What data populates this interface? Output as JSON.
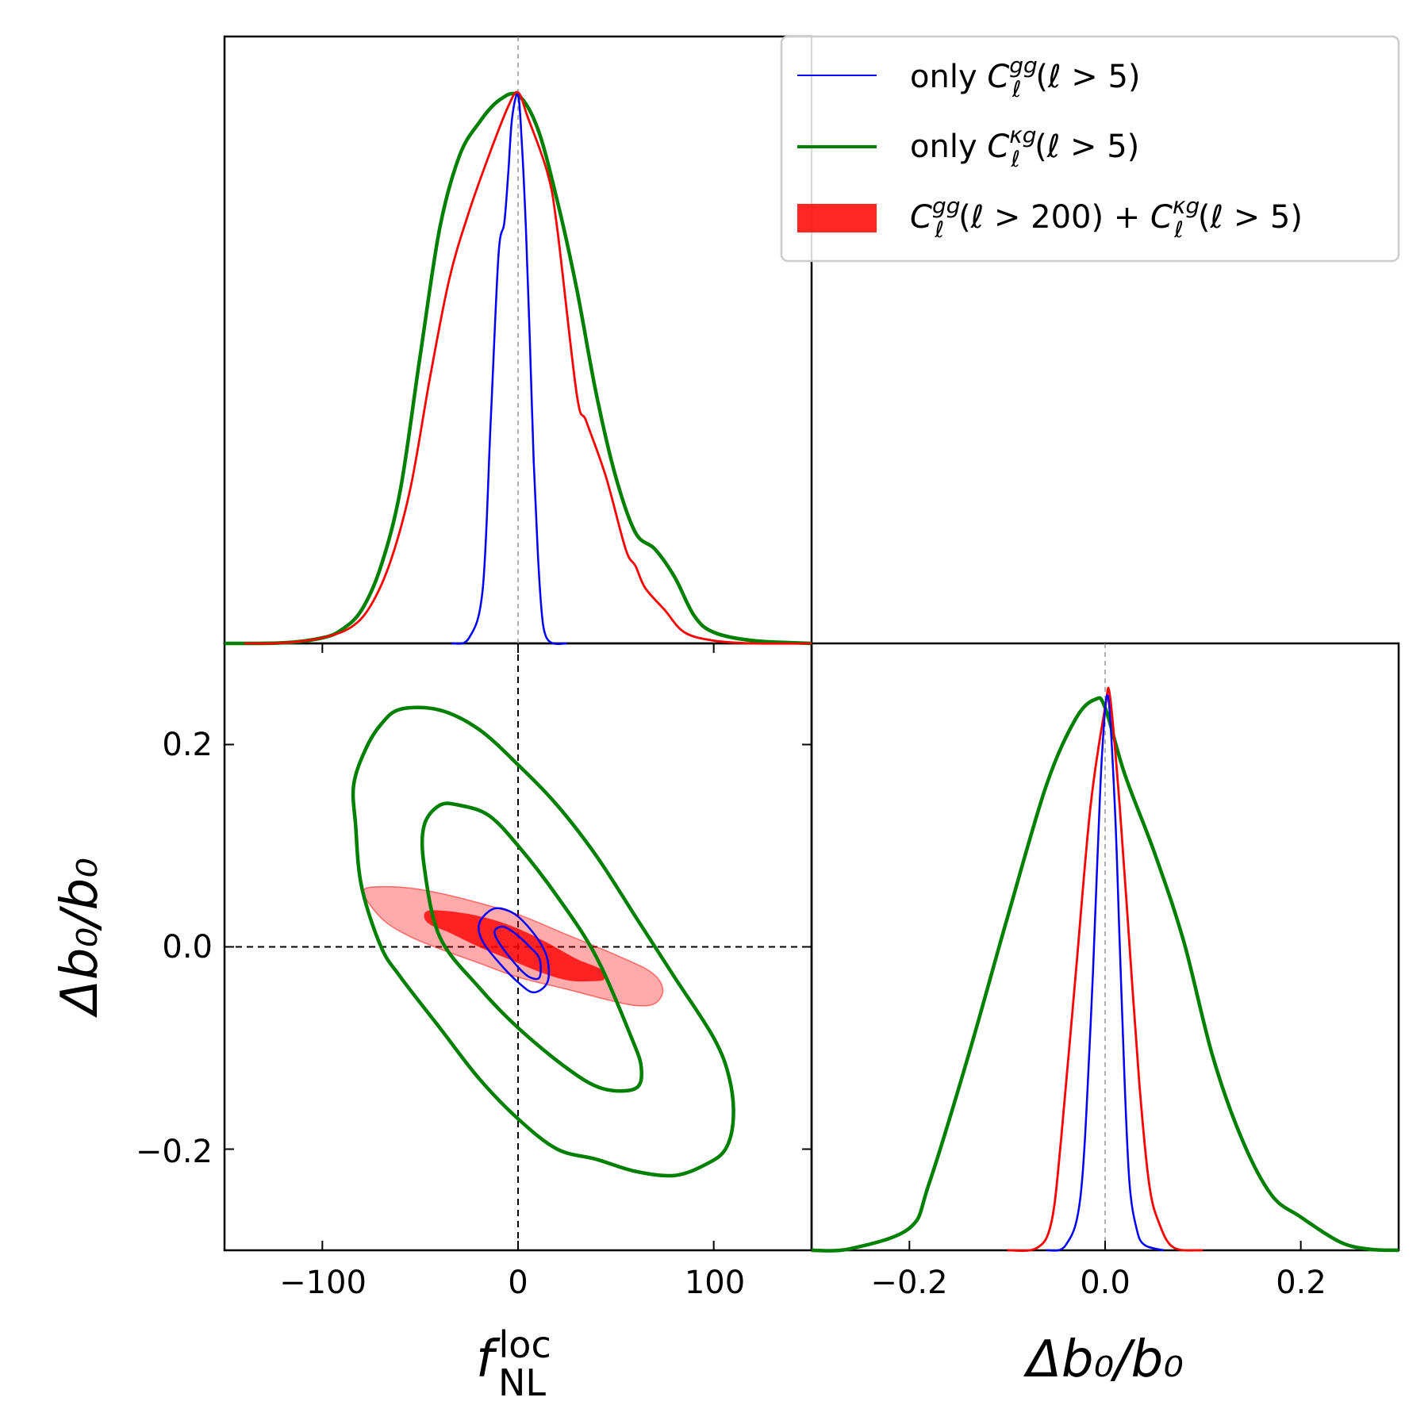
{
  "chart_data": {
    "type": "corner-plot",
    "parameters": [
      "f_NL^loc",
      "Δb0/b0"
    ],
    "fiducial": {
      "fnl": 0,
      "db": 0.0
    },
    "xlim_fnl": [
      -150,
      150
    ],
    "xlim_db": [
      -0.3,
      0.3
    ],
    "ylim_db": [
      -0.3,
      0.3
    ],
    "fnl_ticks": [
      -100,
      0,
      100
    ],
    "db_ticks": [
      -0.2,
      0.0,
      0.2
    ],
    "tick_labels": {
      "fnl": [
        "−100",
        "0",
        "100"
      ],
      "db_x": [
        "−0.2",
        "0.0",
        "0.2"
      ],
      "db_y": [
        "−0.2",
        "0.0",
        "0.2"
      ]
    },
    "axis_labels": {
      "x_left": {
        "main": "f",
        "sub": "NL",
        "sup": "loc"
      },
      "x_right": "Δb₀/b₀",
      "y_left": "Δb₀/b₀"
    },
    "legend": {
      "placement": "top-right",
      "entries": [
        {
          "series": "gg",
          "prefix": "only ",
          "C": "C",
          "sup": "gg",
          "sub": "ℓ",
          "tail": "(ℓ > 5)"
        },
        {
          "series": "kg",
          "prefix": "only ",
          "C": "C",
          "sup": "κg",
          "sub": "ℓ",
          "tail": "(ℓ > 5)"
        },
        {
          "series": "comb",
          "prefix": "",
          "C": "C",
          "sup": "gg",
          "sub": "ℓ",
          "tail": "(ℓ > 200) + ",
          "C2": "C",
          "sup2": "κg",
          "sub2": "ℓ",
          "tail2": "(ℓ > 5)"
        }
      ]
    },
    "series": [
      {
        "name": "gg",
        "color": "#0000ff",
        "fnl_1d": [
          [
            -34,
            0
          ],
          [
            -25,
            0.01
          ],
          [
            -18,
            0.1
          ],
          [
            -14,
            0.4
          ],
          [
            -10,
            0.7
          ],
          [
            -7,
            0.76
          ],
          [
            -5,
            0.85
          ],
          [
            -3,
            0.95
          ],
          [
            0,
            0.99
          ],
          [
            2,
            0.9
          ],
          [
            4,
            0.75
          ],
          [
            6,
            0.55
          ],
          [
            8,
            0.33
          ],
          [
            10,
            0.17
          ],
          [
            12,
            0.06
          ],
          [
            14,
            0.015
          ],
          [
            18,
            0
          ],
          [
            25,
            0
          ]
        ],
        "db_1d": [
          [
            -0.06,
            0
          ],
          [
            -0.04,
            0.01
          ],
          [
            -0.025,
            0.1
          ],
          [
            -0.015,
            0.4
          ],
          [
            -0.008,
            0.7
          ],
          [
            -0.003,
            0.9
          ],
          [
            0.003,
            1.0
          ],
          [
            0.01,
            0.8
          ],
          [
            0.015,
            0.55
          ],
          [
            0.02,
            0.3
          ],
          [
            0.025,
            0.12
          ],
          [
            0.032,
            0.04
          ],
          [
            0.04,
            0.01
          ],
          [
            0.06,
            0
          ]
        ],
        "contours": [
          [
            [
              -8,
              0.02
            ],
            [
              -2,
              0.014
            ],
            [
              6,
              0.0
            ],
            [
              11,
              -0.012
            ],
            [
              11,
              -0.03
            ],
            [
              6,
              -0.03
            ],
            [
              0,
              -0.02
            ],
            [
              -9,
              0.002
            ],
            [
              -12,
              0.015
            ]
          ],
          [
            [
              -15,
              0.035
            ],
            [
              -9,
              0.038
            ],
            [
              0,
              0.03
            ],
            [
              10,
              0.008
            ],
            [
              15,
              -0.012
            ],
            [
              15,
              -0.035
            ],
            [
              8,
              -0.045
            ],
            [
              0,
              -0.035
            ],
            [
              -10,
              -0.015
            ],
            [
              -18,
              0.005
            ],
            [
              -20,
              0.022
            ]
          ]
        ]
      },
      {
        "name": "kg",
        "color": "#008000",
        "fnl_1d": [
          [
            -150,
            0
          ],
          [
            -120,
            0.001
          ],
          [
            -100,
            0.01
          ],
          [
            -90,
            0.025
          ],
          [
            -80,
            0.06
          ],
          [
            -70,
            0.14
          ],
          [
            -60,
            0.28
          ],
          [
            -50,
            0.52
          ],
          [
            -40,
            0.75
          ],
          [
            -30,
            0.88
          ],
          [
            -20,
            0.94
          ],
          [
            -10,
            0.98
          ],
          [
            0,
            0.99
          ],
          [
            10,
            0.93
          ],
          [
            20,
            0.8
          ],
          [
            30,
            0.64
          ],
          [
            40,
            0.45
          ],
          [
            50,
            0.3
          ],
          [
            60,
            0.2
          ],
          [
            70,
            0.17
          ],
          [
            80,
            0.12
          ],
          [
            90,
            0.05
          ],
          [
            100,
            0.02
          ],
          [
            120,
            0.005
          ],
          [
            150,
            0
          ]
        ],
        "db_1d": [
          [
            -0.3,
            0
          ],
          [
            -0.26,
            0.003
          ],
          [
            -0.2,
            0.04
          ],
          [
            -0.18,
            0.12
          ],
          [
            -0.14,
            0.35
          ],
          [
            -0.1,
            0.6
          ],
          [
            -0.06,
            0.84
          ],
          [
            -0.03,
            0.96
          ],
          [
            -0.01,
            0.995
          ],
          [
            0.0,
            0.98
          ],
          [
            0.02,
            0.86
          ],
          [
            0.05,
            0.72
          ],
          [
            0.08,
            0.56
          ],
          [
            0.11,
            0.35
          ],
          [
            0.14,
            0.2
          ],
          [
            0.17,
            0.1
          ],
          [
            0.2,
            0.06
          ],
          [
            0.24,
            0.015
          ],
          [
            0.27,
            0.002
          ],
          [
            0.3,
            0
          ]
        ],
        "contours": [
          [
            [
              -30,
              0.14
            ],
            [
              -15,
              0.13
            ],
            [
              0,
              0.1
            ],
            [
              20,
              0.05
            ],
            [
              40,
              -0.01
            ],
            [
              58,
              -0.09
            ],
            [
              63,
              -0.12
            ],
            [
              60,
              -0.14
            ],
            [
              43,
              -0.14
            ],
            [
              25,
              -0.12
            ],
            [
              0,
              -0.08
            ],
            [
              -20,
              -0.04
            ],
            [
              -40,
              0.01
            ],
            [
              -48,
              0.08
            ],
            [
              -48,
              0.12
            ],
            [
              -40,
              0.14
            ]
          ],
          [
            [
              -60,
              0.235
            ],
            [
              -40,
              0.234
            ],
            [
              -20,
              0.215
            ],
            [
              0,
              0.18
            ],
            [
              20,
              0.14
            ],
            [
              40,
              0.09
            ],
            [
              60,
              0.03
            ],
            [
              80,
              -0.03
            ],
            [
              100,
              -0.09
            ],
            [
              108,
              -0.13
            ],
            [
              110,
              -0.17
            ],
            [
              106,
              -0.2
            ],
            [
              96,
              -0.215
            ],
            [
              80,
              -0.226
            ],
            [
              60,
              -0.222
            ],
            [
              40,
              -0.21
            ],
            [
              20,
              -0.2
            ],
            [
              0,
              -0.17
            ],
            [
              -20,
              -0.13
            ],
            [
              -40,
              -0.08
            ],
            [
              -60,
              -0.03
            ],
            [
              -70,
              0.0
            ],
            [
              -80,
              0.06
            ],
            [
              -83,
              0.12
            ],
            [
              -84,
              0.16
            ],
            [
              -78,
              0.195
            ],
            [
              -70,
              0.22
            ]
          ]
        ]
      },
      {
        "name": "comb",
        "color": "#ff0000",
        "fnl_1d": [
          [
            -140,
            0
          ],
          [
            -120,
            0.001
          ],
          [
            -100,
            0.01
          ],
          [
            -85,
            0.03
          ],
          [
            -75,
            0.07
          ],
          [
            -65,
            0.15
          ],
          [
            -55,
            0.28
          ],
          [
            -45,
            0.48
          ],
          [
            -35,
            0.66
          ],
          [
            -25,
            0.78
          ],
          [
            -15,
            0.88
          ],
          [
            -5,
            0.97
          ],
          [
            0,
            0.995
          ],
          [
            5,
            0.95
          ],
          [
            15,
            0.85
          ],
          [
            20,
            0.75
          ],
          [
            30,
            0.45
          ],
          [
            35,
            0.4
          ],
          [
            45,
            0.3
          ],
          [
            55,
            0.17
          ],
          [
            60,
            0.14
          ],
          [
            65,
            0.1
          ],
          [
            75,
            0.06
          ],
          [
            85,
            0.02
          ],
          [
            100,
            0.005
          ],
          [
            120,
            0
          ],
          [
            150,
            0
          ]
        ],
        "db_1d": [
          [
            -0.1,
            0
          ],
          [
            -0.07,
            0.004
          ],
          [
            -0.055,
            0.05
          ],
          [
            -0.045,
            0.2
          ],
          [
            -0.03,
            0.5
          ],
          [
            -0.015,
            0.8
          ],
          [
            0.0,
            0.98
          ],
          [
            0.005,
            1.0
          ],
          [
            0.015,
            0.8
          ],
          [
            0.025,
            0.55
          ],
          [
            0.035,
            0.3
          ],
          [
            0.045,
            0.12
          ],
          [
            0.055,
            0.05
          ],
          [
            0.07,
            0.005
          ],
          [
            0.1,
            0
          ]
        ],
        "contours": [
          [
            [
              -45,
              0.036
            ],
            [
              -30,
              0.034
            ],
            [
              -15,
              0.028
            ],
            [
              0,
              0.018
            ],
            [
              15,
              0.004
            ],
            [
              30,
              -0.012
            ],
            [
              42,
              -0.022
            ],
            [
              44,
              -0.032
            ],
            [
              38,
              -0.034
            ],
            [
              25,
              -0.033
            ],
            [
              10,
              -0.024
            ],
            [
              -5,
              -0.012
            ],
            [
              -20,
              0.0
            ],
            [
              -35,
              0.014
            ],
            [
              -45,
              0.022
            ],
            [
              -48,
              0.03
            ]
          ],
          [
            [
              -75,
              0.059
            ],
            [
              -60,
              0.059
            ],
            [
              -45,
              0.055
            ],
            [
              -25,
              0.046
            ],
            [
              0,
              0.032
            ],
            [
              25,
              0.012
            ],
            [
              50,
              -0.008
            ],
            [
              68,
              -0.025
            ],
            [
              74,
              -0.042
            ],
            [
              70,
              -0.056
            ],
            [
              60,
              -0.058
            ],
            [
              45,
              -0.052
            ],
            [
              25,
              -0.042
            ],
            [
              0,
              -0.03
            ],
            [
              -20,
              -0.016
            ],
            [
              -40,
              -0.002
            ],
            [
              -55,
              0.01
            ],
            [
              -68,
              0.025
            ],
            [
              -77,
              0.045
            ],
            [
              -79,
              0.055
            ]
          ]
        ]
      }
    ]
  }
}
